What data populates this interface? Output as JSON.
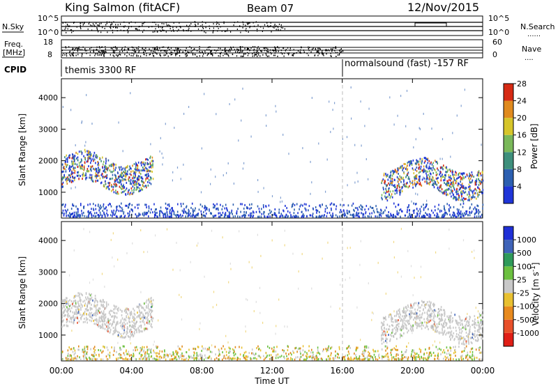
{
  "header": {
    "station": "King Salmon (fitACF)",
    "beam": "Beam 07",
    "date": "12/Nov/2015"
  },
  "sky_panel": {
    "left_label": "N.Sky",
    "right_label": "N.Search",
    "tick_top": "10^5",
    "tick_bottom": "10^0",
    "right_tick_top": "10^5",
    "right_tick_bottom": "10^0"
  },
  "freq_panel": {
    "left_label_1": "Freq.",
    "left_label_2": "[MHz]",
    "right_label": "Nave",
    "left_ticks": [
      "18",
      "8"
    ],
    "right_ticks": [
      "60",
      "0"
    ]
  },
  "cpid_panel": {
    "label": "CPID",
    "programs": [
      {
        "name": "themis 3300 RF",
        "start": "00:00"
      },
      {
        "name": "normalsound (fast) -157 RF",
        "start": "16:00"
      }
    ]
  },
  "chart_data": [
    {
      "type": "heatmap",
      "name": "power",
      "ylabel": "Slant Range [km]",
      "xlabel": "Time UT",
      "x_ticks": [
        "00:00",
        "04:00",
        "08:00",
        "12:00",
        "16:00",
        "20:00",
        "00:00"
      ],
      "x_range_hours": [
        0,
        24
      ],
      "y_ticks": [
        1000,
        2000,
        3000,
        4000
      ],
      "ylim": [
        180,
        4600
      ],
      "colorbar": {
        "label": "Power [dB]",
        "ticks": [
          "4",
          "8",
          "12",
          "16",
          "20",
          "24",
          "28"
        ],
        "colors": [
          "#1f35d8",
          "#2c5fb0",
          "#3e8f7c",
          "#7ab85a",
          "#d6c52a",
          "#e08a1e",
          "#d62a14"
        ]
      },
      "scatter_regions": [
        {
          "t_start": 0.0,
          "t_end": 5.2,
          "r_min": 1100,
          "r_max": 2150,
          "level": "mixed"
        },
        {
          "t_start": 18.2,
          "t_end": 24.0,
          "r_min": 900,
          "r_max": 1900,
          "level": "mixed"
        },
        {
          "t_start": 0.0,
          "t_end": 24.0,
          "r_min": 220,
          "r_max": 650,
          "level": "low"
        }
      ]
    },
    {
      "type": "heatmap",
      "name": "velocity",
      "ylabel": "Slant Range [km]",
      "xlabel": "Time UT",
      "x_ticks": [
        "00:00",
        "04:00",
        "08:00",
        "12:00",
        "16:00",
        "20:00",
        "00:00"
      ],
      "x_range_hours": [
        0,
        24
      ],
      "y_ticks": [
        1000,
        2000,
        3000,
        4000
      ],
      "ylim": [
        180,
        4600
      ],
      "colorbar": {
        "label": "Velocity [m s",
        "label_sup": "-1",
        "label_end": "]",
        "ticks": [
          "1000",
          "500",
          "100",
          "25",
          "-25",
          "-100",
          "-500",
          "-1000"
        ],
        "colors": [
          "#1f2fd6",
          "#3f63b8",
          "#2f9a5a",
          "#6cc040",
          "#c8c8c8",
          "#e8c030",
          "#e88a1e",
          "#e8502a",
          "#e01e16"
        ]
      },
      "scatter_regions": [
        {
          "t_start": 0.0,
          "t_end": 5.2,
          "r_min": 1100,
          "r_max": 2150,
          "level": "ground"
        },
        {
          "t_start": 18.2,
          "t_end": 24.0,
          "r_min": 900,
          "r_max": 1900,
          "level": "ground"
        },
        {
          "t_start": 0.0,
          "t_end": 24.0,
          "r_min": 220,
          "r_max": 650,
          "level": "low"
        }
      ]
    }
  ]
}
